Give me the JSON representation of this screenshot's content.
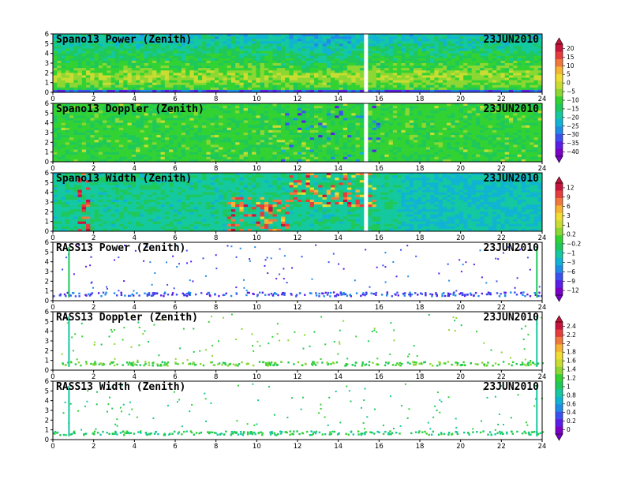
{
  "chart_data": [
    {
      "type": "heatmap",
      "title": "Spano13 Power (Zenith)",
      "date": "23JUN2010",
      "xlim": [
        0,
        24
      ],
      "xticks": [
        0,
        2,
        4,
        6,
        8,
        10,
        12,
        14,
        16,
        18,
        20,
        22,
        24
      ],
      "ylim": [
        0,
        6
      ],
      "yticks": [
        0,
        1,
        2,
        3,
        4,
        5,
        6
      ],
      "colorbar_group": 0,
      "style": "spano_power"
    },
    {
      "type": "heatmap",
      "title": "Spano13 Doppler (Zenith)",
      "date": "23JUN2010",
      "xlim": [
        0,
        24
      ],
      "xticks": [
        0,
        2,
        4,
        6,
        8,
        10,
        12,
        14,
        16,
        18,
        20,
        22,
        24
      ],
      "ylim": [
        0,
        6
      ],
      "yticks": [
        0,
        1,
        2,
        3,
        4,
        5,
        6
      ],
      "colorbar_group": 0,
      "style": "spano_doppler"
    },
    {
      "type": "heatmap",
      "title": "Spano13 Width (Zenith)",
      "date": "23JUN2010",
      "xlim": [
        0,
        24
      ],
      "xticks": [
        0,
        2,
        4,
        6,
        8,
        10,
        12,
        14,
        16,
        18,
        20,
        22,
        24
      ],
      "ylim": [
        0,
        6
      ],
      "yticks": [
        0,
        1,
        2,
        3,
        4,
        5,
        6
      ],
      "colorbar_group": 1,
      "style": "spano_width"
    },
    {
      "type": "scatter",
      "title": "RASS13 Power (Zenith)",
      "date": "23JUN2010",
      "xlim": [
        0,
        24
      ],
      "xticks": [
        0,
        2,
        4,
        6,
        8,
        10,
        12,
        14,
        16,
        18,
        20,
        22,
        24
      ],
      "ylim": [
        0,
        6
      ],
      "yticks": [
        0,
        1,
        2,
        3,
        4,
        5,
        6
      ],
      "colorbar_group": 1,
      "style": "rass_power"
    },
    {
      "type": "scatter",
      "title": "RASS13 Doppler (Zenith)",
      "date": "23JUN2010",
      "xlim": [
        0,
        24
      ],
      "xticks": [
        0,
        2,
        4,
        6,
        8,
        10,
        12,
        14,
        16,
        18,
        20,
        22,
        24
      ],
      "ylim": [
        0,
        6
      ],
      "yticks": [
        0,
        1,
        2,
        3,
        4,
        5,
        6
      ],
      "colorbar_group": 2,
      "style": "rass_doppler"
    },
    {
      "type": "scatter",
      "title": "RASS13 Width (Zenith)",
      "date": "23JUN2010",
      "xlim": [
        0,
        24
      ],
      "xticks": [
        0,
        2,
        4,
        6,
        8,
        10,
        12,
        14,
        16,
        18,
        20,
        22,
        24
      ],
      "ylim": [
        0,
        6
      ],
      "yticks": [
        0,
        1,
        2,
        3,
        4,
        5,
        6
      ],
      "colorbar_group": 2,
      "style": "rass_width"
    }
  ],
  "colorbars": [
    {
      "ticks": [
        "20",
        "15",
        "10",
        "5",
        "0",
        "−5",
        "−10",
        "−15",
        "−20",
        "−25",
        "−30",
        "−35",
        "−40"
      ]
    },
    {
      "ticks": [
        "12",
        "9",
        "6",
        "3",
        "1",
        "0.2",
        "−0.2",
        "−1",
        "−3",
        "−6",
        "−9",
        "−12"
      ]
    },
    {
      "ticks": [
        "2.4",
        "2.2",
        "2",
        "1.8",
        "1.6",
        "1.4",
        "1.2",
        "1",
        "0.8",
        "0.6",
        "0.4",
        "0.2",
        "0"
      ]
    }
  ],
  "colors": {
    "palette": [
      "#7a00c8",
      "#5a1ee8",
      "#3c50f0",
      "#1e8ce6",
      "#10b4d2",
      "#14c8a0",
      "#1ec85a",
      "#32d232",
      "#8cd732",
      "#c8dc32",
      "#f0dc32",
      "#f5b432",
      "#f0783c",
      "#e63c3c",
      "#c8143c"
    ]
  }
}
